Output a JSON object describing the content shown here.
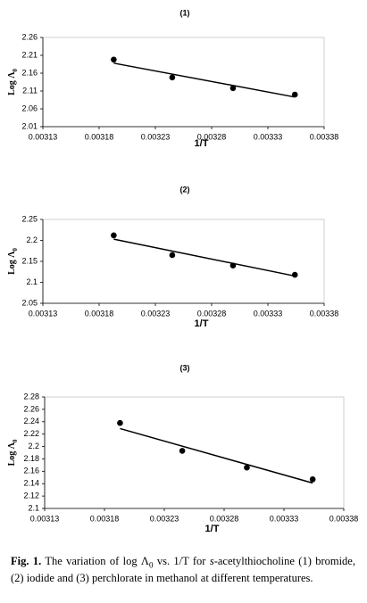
{
  "chart_data": [
    {
      "type": "scatter",
      "title": "(1)",
      "x_label": "1/T",
      "y_label": "Log Λ",
      "y_label_sub": "0",
      "x": [
        0.003193,
        0.003245,
        0.003299,
        0.003354
      ],
      "values": [
        2.198,
        2.148,
        2.118,
        2.1
      ],
      "color": "#000000",
      "fit": {
        "x": [
          0.003193,
          0.003354
        ],
        "values": [
          2.188,
          2.093
        ]
      },
      "xlim": [
        0.00313,
        0.00338
      ],
      "xticks": [
        0.00313,
        0.00318,
        0.00323,
        0.00328,
        0.00333,
        0.00338
      ],
      "ylim": [
        2.01,
        2.26
      ],
      "yticks": [
        2.01,
        2.06,
        2.11,
        2.16,
        2.21,
        2.26
      ]
    },
    {
      "type": "scatter",
      "title": "(2)",
      "x_label": "1/T",
      "y_label": "Log Λ",
      "y_label_sub": "0",
      "x": [
        0.003193,
        0.003245,
        0.003299,
        0.003354
      ],
      "values": [
        2.212,
        2.165,
        2.14,
        2.118
      ],
      "color": "#000000",
      "fit": {
        "x": [
          0.003193,
          0.003354
        ],
        "values": [
          2.203,
          2.115
        ]
      },
      "xlim": [
        0.00313,
        0.00338
      ],
      "xticks": [
        0.00313,
        0.00318,
        0.00323,
        0.00328,
        0.00333,
        0.00338
      ],
      "ylim": [
        2.05,
        2.25
      ],
      "yticks": [
        2.05,
        2.1,
        2.15,
        2.2,
        2.25
      ]
    },
    {
      "type": "scatter",
      "title": "(3)",
      "x_label": "1/T",
      "y_label": "Log Λ",
      "y_label_sub": "0",
      "x": [
        0.003193,
        0.003245,
        0.003299,
        0.003354
      ],
      "values": [
        2.238,
        2.193,
        2.166,
        2.147
      ],
      "color": "#000000",
      "fit": {
        "x": [
          0.003193,
          0.003354
        ],
        "values": [
          2.229,
          2.141
        ]
      },
      "xlim": [
        0.00313,
        0.00338
      ],
      "xticks": [
        0.00313,
        0.00318,
        0.00323,
        0.00328,
        0.00333,
        0.00338
      ],
      "ylim": [
        2.1,
        2.28
      ],
      "yticks": [
        2.1,
        2.12,
        2.14,
        2.16,
        2.18,
        2.2,
        2.22,
        2.24,
        2.26,
        2.28
      ]
    }
  ],
  "caption": {
    "label": "Fig. 1.",
    "parts": [
      " The variation of log Λ",
      "0",
      " vs. 1/T for ",
      "s",
      "-acetylthiocholine (1) bromide, (2) iodide and (3) perchlorate in methanol at different temperatures."
    ]
  }
}
